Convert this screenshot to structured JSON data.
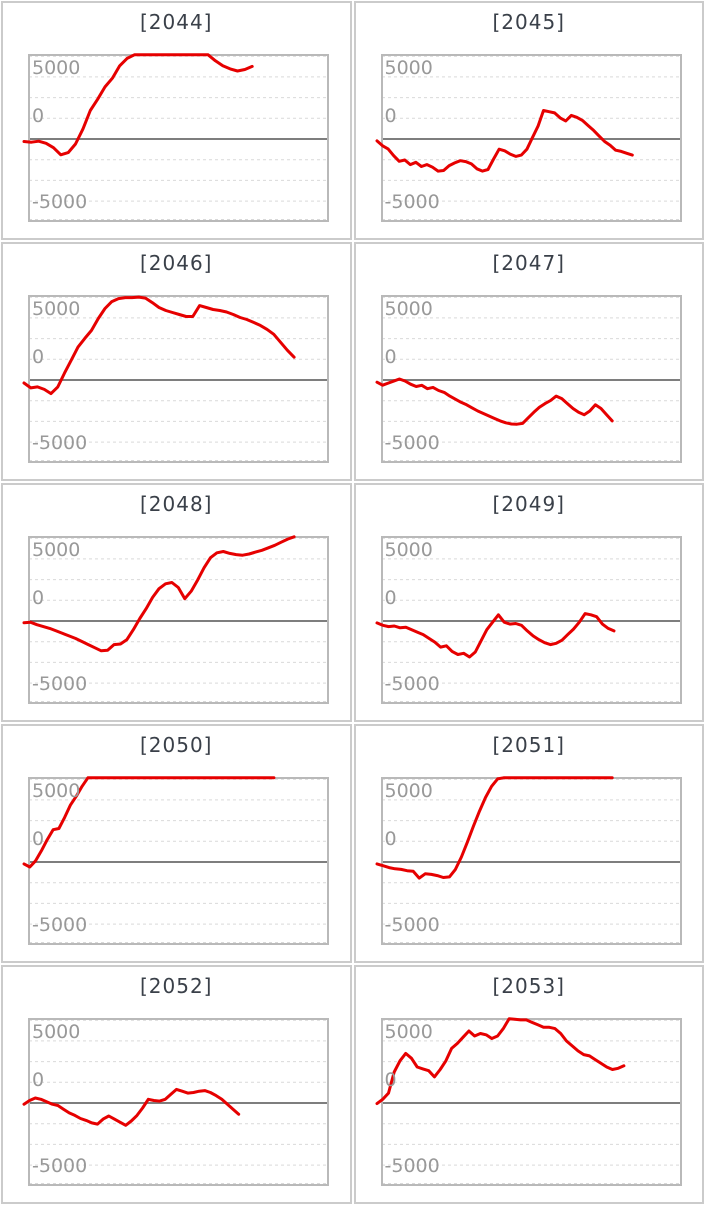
{
  "style": {
    "series_color": "#e60000",
    "zero_line_color": "#7e7e7e",
    "grid_color": "#d9d9d9",
    "plot_border_color": "#b9b9b9",
    "panel_border_color": "#cbcbcb",
    "tick_label_color": "#999999",
    "title_color": "#3a4049"
  },
  "axis": {
    "yticks": [
      "5000",
      "0",
      "-5000"
    ],
    "ytick_values": [
      5000,
      0,
      -5000
    ],
    "ylim": [
      -6770,
      6850
    ],
    "grid_step": 1667,
    "grid_lines": "dashed horizontal",
    "x_axis_labels": "none",
    "legend": "none"
  },
  "chart_data": [
    {
      "type": "line",
      "title": "[2044]",
      "x_end": 0.745,
      "values": [
        -200,
        -260,
        -180,
        -350,
        -700,
        -1270,
        -1100,
        -400,
        800,
        2300,
        3200,
        4200,
        4900,
        5900,
        6500,
        6800,
        6800,
        6800,
        6800,
        6800,
        6800,
        6800,
        6800,
        6800,
        6800,
        6800,
        6300,
        5900,
        5650,
        5480,
        5600,
        5850
      ]
    },
    {
      "type": "line",
      "title": "[2045]",
      "x_end": 0.835,
      "values": [
        -150,
        -550,
        -800,
        -1350,
        -1800,
        -1690,
        -2060,
        -1875,
        -2220,
        -2060,
        -2275,
        -2590,
        -2540,
        -2140,
        -1930,
        -1745,
        -1825,
        -2010,
        -2400,
        -2590,
        -2460,
        -1610,
        -820,
        -950,
        -1215,
        -1400,
        -1295,
        -820,
        105,
        1030,
        2300,
        2200,
        2100,
        1700,
        1450,
        1900,
        1750,
        1500,
        1100,
        700,
        250,
        -200,
        -500,
        -900,
        -1000,
        -1150,
        -1300
      ]
    },
    {
      "type": "line",
      "title": "[2046]",
      "x_end": 0.884,
      "values": [
        -240,
        -640,
        -560,
        -760,
        -1100,
        -560,
        560,
        1600,
        2650,
        3350,
        4000,
        4960,
        5760,
        6320,
        6560,
        6640,
        6640,
        6680,
        6600,
        6240,
        5840,
        5600,
        5440,
        5280,
        5120,
        5120,
        6000,
        5840,
        5680,
        5600,
        5480,
        5280,
        5040,
        4880,
        4640,
        4400,
        4080,
        3680,
        3040,
        2400,
        1840
      ]
    },
    {
      "type": "line",
      "title": "[2047]",
      "x_end": 0.768,
      "values": [
        -180,
        -420,
        -250,
        -90,
        80,
        -80,
        -340,
        -520,
        -430,
        -700,
        -600,
        -850,
        -1000,
        -1300,
        -1550,
        -1800,
        -2000,
        -2250,
        -2500,
        -2700,
        -2900,
        -3100,
        -3300,
        -3450,
        -3550,
        -3560,
        -3500,
        -3050,
        -2600,
        -2200,
        -1900,
        -1650,
        -1300,
        -1500,
        -1900,
        -2300,
        -2600,
        -2800,
        -2500,
        -2000,
        -2300,
        -2800,
        -3300
      ]
    },
    {
      "type": "line",
      "title": "[2048]",
      "x_end": 0.884,
      "values": [
        -140,
        -100,
        -300,
        -450,
        -600,
        -800,
        -1000,
        -1200,
        -1400,
        -1650,
        -1900,
        -2150,
        -2400,
        -2350,
        -1900,
        -1850,
        -1500,
        -700,
        200,
        1000,
        1900,
        2600,
        3000,
        3100,
        2700,
        1800,
        2400,
        3300,
        4300,
        5100,
        5500,
        5600,
        5450,
        5350,
        5300,
        5400,
        5550,
        5700,
        5900,
        6100,
        6350,
        6600,
        6800
      ]
    },
    {
      "type": "line",
      "title": "[2049]",
      "x_end": 0.774,
      "values": [
        -150,
        -350,
        -450,
        -400,
        -550,
        -500,
        -700,
        -900,
        -1100,
        -1400,
        -1700,
        -2100,
        -2000,
        -2450,
        -2700,
        -2600,
        -2900,
        -2500,
        -1600,
        -700,
        -100,
        500,
        -100,
        -250,
        -200,
        -350,
        -800,
        -1200,
        -1500,
        -1750,
        -1900,
        -1800,
        -1550,
        -1100,
        -650,
        -100,
        600,
        500,
        350,
        -250,
        -600,
        -800
      ]
    },
    {
      "type": "line",
      "title": "[2050]",
      "x_end": 0.817,
      "values": [
        -150,
        -400,
        100,
        900,
        1800,
        2600,
        2700,
        3600,
        4600,
        5300,
        6100,
        6800,
        6800,
        6800,
        6800,
        6800,
        6800,
        6800,
        6800,
        6800,
        6800,
        6800,
        6800,
        6800,
        6800,
        6800,
        6800,
        6800,
        6800,
        6800,
        6800,
        6800,
        6800,
        6800,
        6800,
        6800,
        6800,
        6800,
        6800,
        6800,
        6800,
        6800,
        6800,
        6800
      ]
    },
    {
      "type": "line",
      "title": "[2051]",
      "x_end": 0.768,
      "values": [
        -150,
        -300,
        -450,
        -550,
        -600,
        -700,
        -750,
        -1300,
        -950,
        -1000,
        -1100,
        -1250,
        -1200,
        -600,
        400,
        1600,
        2900,
        4100,
        5200,
        6100,
        6700,
        6800,
        6800,
        6800,
        6800,
        6800,
        6800,
        6800,
        6800,
        6800,
        6800,
        6800,
        6800,
        6800,
        6800,
        6800,
        6800,
        6800,
        6800,
        6800
      ]
    },
    {
      "type": "line",
      "title": "[2052]",
      "x_end": 0.7,
      "values": [
        -100,
        200,
        400,
        300,
        100,
        -100,
        -200,
        -500,
        -800,
        -1000,
        -1250,
        -1400,
        -1600,
        -1700,
        -1300,
        -1050,
        -1300,
        -1550,
        -1800,
        -1450,
        -1000,
        -400,
        300,
        200,
        150,
        300,
        700,
        1100,
        950,
        800,
        850,
        950,
        1000,
        850,
        600,
        300,
        -100,
        -500,
        -900
      ]
    },
    {
      "type": "line",
      "title": "[2053]",
      "x_end": 0.807,
      "values": [
        -50,
        300,
        800,
        2500,
        3400,
        4000,
        3600,
        2900,
        2750,
        2600,
        2100,
        2700,
        3400,
        4400,
        4800,
        5300,
        5800,
        5400,
        5600,
        5500,
        5200,
        5400,
        6000,
        6800,
        6750,
        6700,
        6700,
        6500,
        6300,
        6100,
        6100,
        6000,
        5600,
        5000,
        4600,
        4200,
        3900,
        3800,
        3500,
        3200,
        2900,
        2700,
        2800,
        3000
      ]
    }
  ]
}
